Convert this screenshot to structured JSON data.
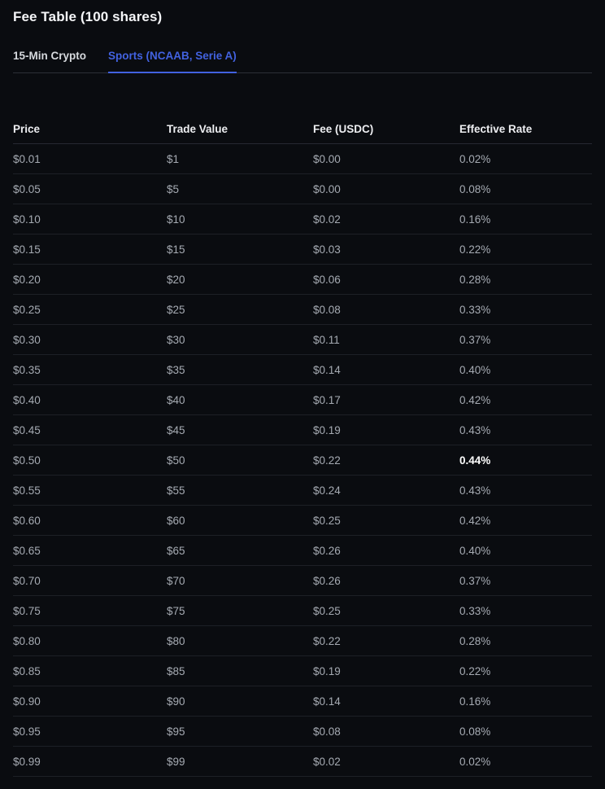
{
  "title": "Fee Table (100 shares)",
  "tabs": [
    {
      "label": "15-Min Crypto",
      "active": false
    },
    {
      "label": "Sports (NCAAB, Serie A)",
      "active": true
    }
  ],
  "table": {
    "columns": [
      "Price",
      "Trade Value",
      "Fee (USDC)",
      "Effective Rate"
    ],
    "rows": [
      {
        "price": "$0.01",
        "trade_value": "$1",
        "fee": "$0.00",
        "effective_rate": "0.02%",
        "highlight": false
      },
      {
        "price": "$0.05",
        "trade_value": "$5",
        "fee": "$0.00",
        "effective_rate": "0.08%",
        "highlight": false
      },
      {
        "price": "$0.10",
        "trade_value": "$10",
        "fee": "$0.02",
        "effective_rate": "0.16%",
        "highlight": false
      },
      {
        "price": "$0.15",
        "trade_value": "$15",
        "fee": "$0.03",
        "effective_rate": "0.22%",
        "highlight": false
      },
      {
        "price": "$0.20",
        "trade_value": "$20",
        "fee": "$0.06",
        "effective_rate": "0.28%",
        "highlight": false
      },
      {
        "price": "$0.25",
        "trade_value": "$25",
        "fee": "$0.08",
        "effective_rate": "0.33%",
        "highlight": false
      },
      {
        "price": "$0.30",
        "trade_value": "$30",
        "fee": "$0.11",
        "effective_rate": "0.37%",
        "highlight": false
      },
      {
        "price": "$0.35",
        "trade_value": "$35",
        "fee": "$0.14",
        "effective_rate": "0.40%",
        "highlight": false
      },
      {
        "price": "$0.40",
        "trade_value": "$40",
        "fee": "$0.17",
        "effective_rate": "0.42%",
        "highlight": false
      },
      {
        "price": "$0.45",
        "trade_value": "$45",
        "fee": "$0.19",
        "effective_rate": "0.43%",
        "highlight": false
      },
      {
        "price": "$0.50",
        "trade_value": "$50",
        "fee": "$0.22",
        "effective_rate": "0.44%",
        "highlight": true
      },
      {
        "price": "$0.55",
        "trade_value": "$55",
        "fee": "$0.24",
        "effective_rate": "0.43%",
        "highlight": false
      },
      {
        "price": "$0.60",
        "trade_value": "$60",
        "fee": "$0.25",
        "effective_rate": "0.42%",
        "highlight": false
      },
      {
        "price": "$0.65",
        "trade_value": "$65",
        "fee": "$0.26",
        "effective_rate": "0.40%",
        "highlight": false
      },
      {
        "price": "$0.70",
        "trade_value": "$70",
        "fee": "$0.26",
        "effective_rate": "0.37%",
        "highlight": false
      },
      {
        "price": "$0.75",
        "trade_value": "$75",
        "fee": "$0.25",
        "effective_rate": "0.33%",
        "highlight": false
      },
      {
        "price": "$0.80",
        "trade_value": "$80",
        "fee": "$0.22",
        "effective_rate": "0.28%",
        "highlight": false
      },
      {
        "price": "$0.85",
        "trade_value": "$85",
        "fee": "$0.19",
        "effective_rate": "0.22%",
        "highlight": false
      },
      {
        "price": "$0.90",
        "trade_value": "$90",
        "fee": "$0.14",
        "effective_rate": "0.16%",
        "highlight": false
      },
      {
        "price": "$0.95",
        "trade_value": "$95",
        "fee": "$0.08",
        "effective_rate": "0.08%",
        "highlight": false
      },
      {
        "price": "$0.99",
        "trade_value": "$99",
        "fee": "$0.02",
        "effective_rate": "0.02%",
        "highlight": false
      }
    ]
  },
  "colors": {
    "accent_blue": "#4262e0",
    "background": "#0a0c10",
    "row_text": "#a6abb3",
    "header_text": "#edeef1",
    "highlight_text": "#ffffff"
  }
}
